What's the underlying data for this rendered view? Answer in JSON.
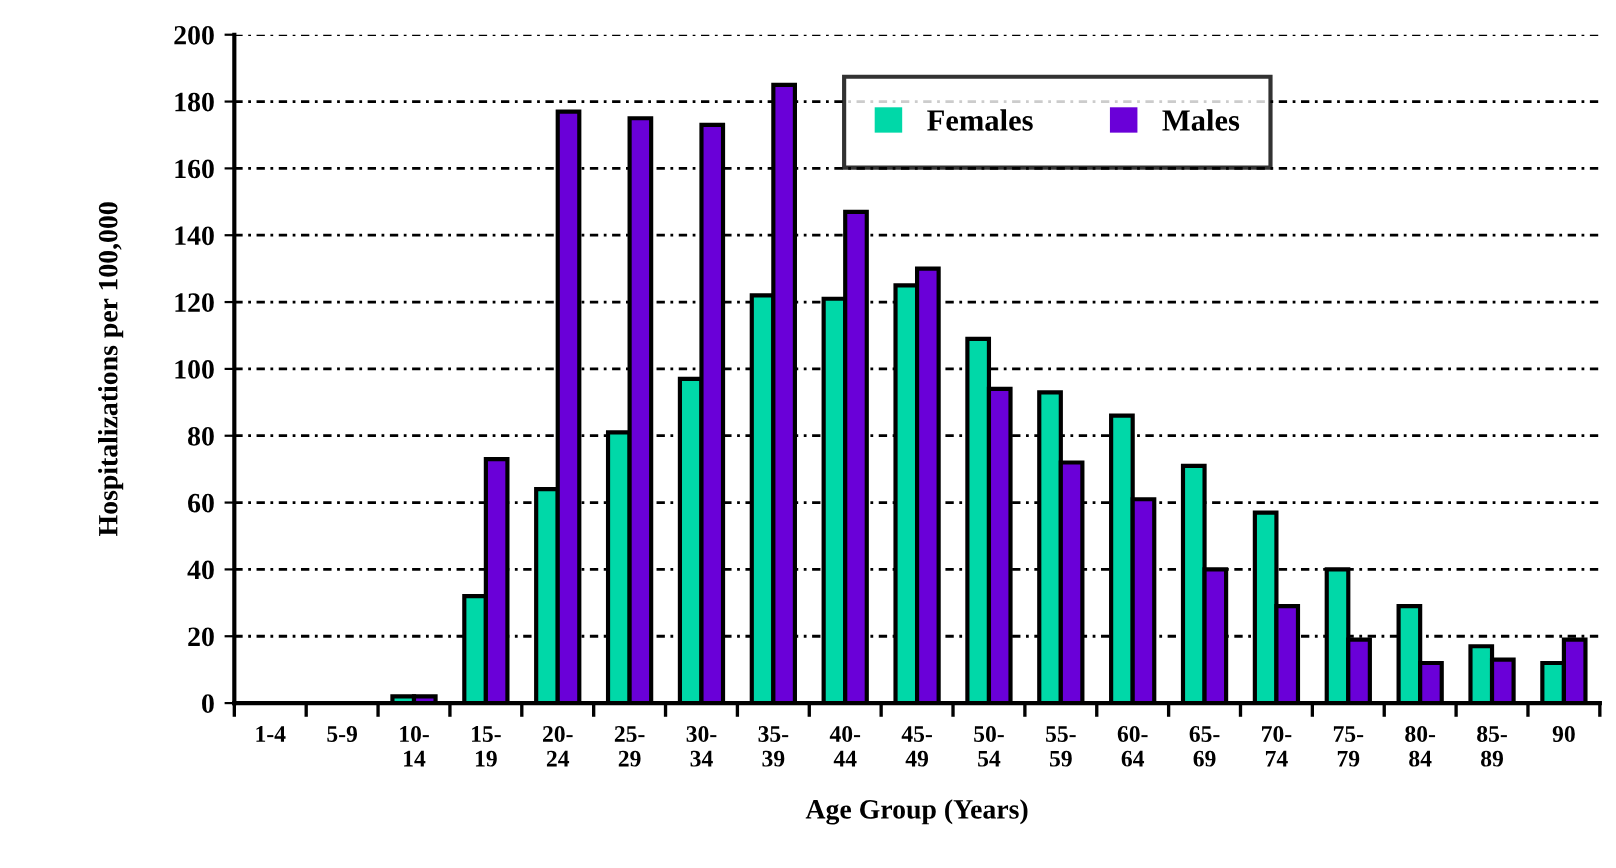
{
  "chart_data": {
    "type": "bar",
    "xlabel": "Age Group (Years)",
    "ylabel": "Hospitalizations per 100,000",
    "categories": [
      "1-4",
      "5-9",
      "10-\n14",
      "15-\n19",
      "20-\n24",
      "25-\n29",
      "30-\n34",
      "35-\n39",
      "40-\n44",
      "45-\n49",
      "50-\n54",
      "55-\n59",
      "60-\n64",
      "65-\n69",
      "70-\n74",
      "75-\n79",
      "80-\n84",
      "85-\n89",
      "90"
    ],
    "series": [
      {
        "name": "Females",
        "color": "#00d8a8",
        "values": [
          0,
          0,
          2,
          32,
          64,
          81,
          97,
          122,
          121,
          125,
          109,
          93,
          86,
          71,
          57,
          40,
          29,
          17,
          12
        ]
      },
      {
        "name": "Males",
        "color": "#6a00d8",
        "values": [
          0,
          0,
          2,
          73,
          177,
          175,
          173,
          185,
          147,
          130,
          94,
          72,
          61,
          40,
          29,
          19,
          12,
          13,
          19
        ]
      }
    ],
    "ylim": [
      0,
      200
    ],
    "yticks": [
      0,
      20,
      40,
      60,
      80,
      100,
      120,
      140,
      160,
      180,
      200
    ],
    "grid": "y",
    "legend": "top right"
  }
}
